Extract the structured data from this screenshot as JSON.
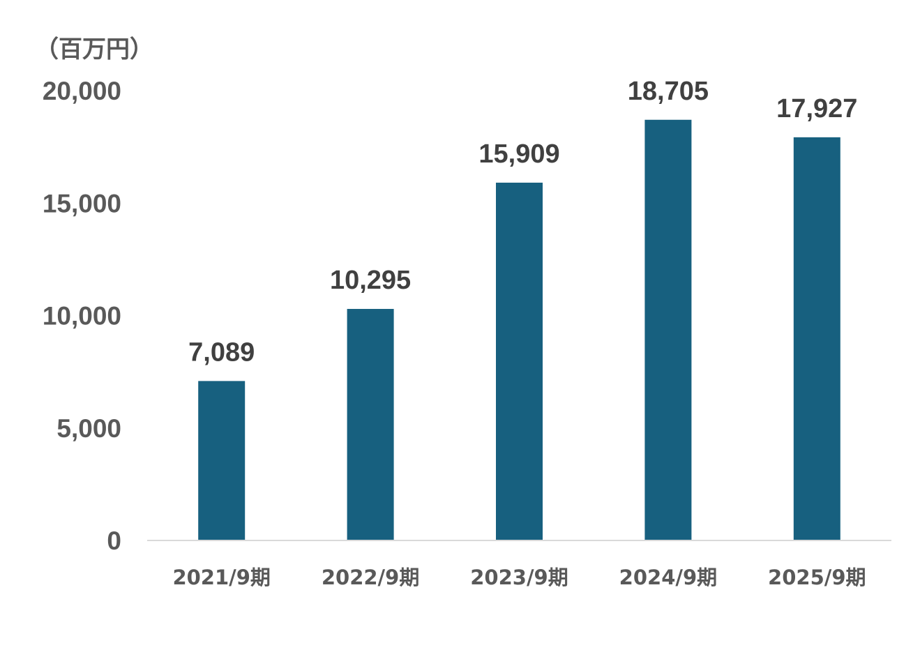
{
  "chart_data": {
    "type": "bar",
    "unit_label": "（百万円）",
    "categories": [
      "2021/9期",
      "2022/9期",
      "2023/9期",
      "2024/9期",
      "2025/9期"
    ],
    "values": [
      7089,
      10295,
      15909,
      18705,
      17927
    ],
    "data_labels": [
      "7,089",
      "10,295",
      "15,909",
      "18,705",
      "17,927"
    ],
    "y_ticks": [
      0,
      5000,
      10000,
      15000,
      20000
    ],
    "y_tick_labels": [
      "0",
      "5,000",
      "10,000",
      "15,000",
      "20,000"
    ],
    "ylim": [
      0,
      20000
    ],
    "grid": false,
    "legend": "none",
    "colors": {
      "bar": "#17607f",
      "axis": "#d9d9d9",
      "label": "#595959",
      "data_label": "#404040"
    }
  }
}
